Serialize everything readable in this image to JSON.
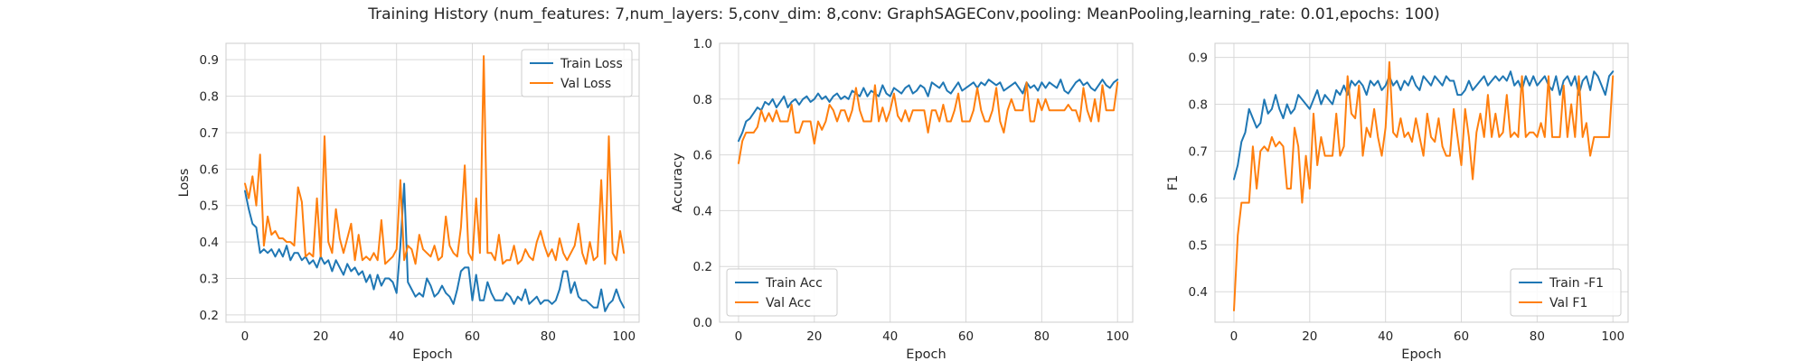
{
  "figure": {
    "title": "Training History (num_features: 7,num_layers: 5,conv_dim: 8,conv: GraphSAGEConv,pooling: MeanPooling,learning_rate: 0.01,epochs: 100)"
  },
  "colors": {
    "train": "#1f77b4",
    "val": "#ff7f0e"
  },
  "chart_data": [
    {
      "type": "line",
      "xlabel": "Epoch",
      "ylabel": "Loss",
      "xlim": [
        -5,
        104
      ],
      "ylim": [
        0.18,
        0.945
      ],
      "xticks": [
        0,
        20,
        40,
        60,
        80,
        100
      ],
      "yticks": [
        0.2,
        0.3,
        0.4,
        0.5,
        0.6,
        0.7,
        0.8,
        0.9
      ],
      "ytick_labels": [
        "0.2",
        "0.3",
        "0.4",
        "0.5",
        "0.6",
        "0.7",
        "0.8",
        "0.9"
      ],
      "grid": true,
      "legend": "top-right",
      "series": [
        {
          "name": "Train Loss",
          "values": [
            0.54,
            0.49,
            0.45,
            0.44,
            0.37,
            0.38,
            0.37,
            0.38,
            0.36,
            0.38,
            0.36,
            0.39,
            0.35,
            0.37,
            0.37,
            0.35,
            0.36,
            0.34,
            0.35,
            0.33,
            0.36,
            0.34,
            0.35,
            0.32,
            0.35,
            0.33,
            0.31,
            0.34,
            0.32,
            0.33,
            0.31,
            0.32,
            0.29,
            0.31,
            0.27,
            0.31,
            0.28,
            0.3,
            0.3,
            0.29,
            0.26,
            0.39,
            0.56,
            0.29,
            0.27,
            0.25,
            0.26,
            0.25,
            0.3,
            0.28,
            0.25,
            0.26,
            0.28,
            0.26,
            0.25,
            0.23,
            0.27,
            0.32,
            0.33,
            0.33,
            0.24,
            0.31,
            0.24,
            0.24,
            0.29,
            0.26,
            0.24,
            0.24,
            0.24,
            0.26,
            0.25,
            0.23,
            0.25,
            0.24,
            0.27,
            0.23,
            0.24,
            0.25,
            0.23,
            0.24,
            0.24,
            0.23,
            0.24,
            0.27,
            0.32,
            0.32,
            0.26,
            0.29,
            0.25,
            0.24,
            0.24,
            0.23,
            0.22,
            0.22,
            0.27,
            0.21,
            0.23,
            0.24,
            0.27,
            0.24,
            0.22
          ]
        },
        {
          "name": "Val Loss",
          "values": [
            0.56,
            0.52,
            0.58,
            0.5,
            0.64,
            0.39,
            0.47,
            0.42,
            0.43,
            0.41,
            0.41,
            0.4,
            0.4,
            0.39,
            0.55,
            0.51,
            0.36,
            0.37,
            0.36,
            0.52,
            0.36,
            0.69,
            0.4,
            0.37,
            0.49,
            0.41,
            0.37,
            0.41,
            0.45,
            0.35,
            0.42,
            0.35,
            0.36,
            0.35,
            0.37,
            0.35,
            0.46,
            0.34,
            0.35,
            0.36,
            0.38,
            0.57,
            0.35,
            0.39,
            0.38,
            0.34,
            0.42,
            0.38,
            0.37,
            0.36,
            0.39,
            0.35,
            0.36,
            0.47,
            0.39,
            0.37,
            0.36,
            0.44,
            0.61,
            0.37,
            0.35,
            0.52,
            0.37,
            0.91,
            0.37,
            0.37,
            0.35,
            0.42,
            0.34,
            0.35,
            0.35,
            0.39,
            0.34,
            0.35,
            0.38,
            0.36,
            0.35,
            0.4,
            0.43,
            0.39,
            0.36,
            0.38,
            0.35,
            0.41,
            0.37,
            0.35,
            0.37,
            0.39,
            0.45,
            0.37,
            0.34,
            0.4,
            0.35,
            0.36,
            0.57,
            0.34,
            0.69,
            0.37,
            0.35,
            0.43,
            0.37
          ]
        }
      ]
    },
    {
      "type": "line",
      "xlabel": "Epoch",
      "ylabel": "Accuracy",
      "xlim": [
        -5,
        104
      ],
      "ylim": [
        0.0,
        1.0
      ],
      "xticks": [
        0,
        20,
        40,
        60,
        80,
        100
      ],
      "yticks": [
        0.0,
        0.2,
        0.4,
        0.6,
        0.8,
        1.0
      ],
      "ytick_labels": [
        "0.0",
        "0.2",
        "0.4",
        "0.6",
        "0.8",
        "1.0"
      ],
      "grid": true,
      "legend": "bottom-left",
      "series": [
        {
          "name": "Train Acc",
          "values": [
            0.65,
            0.68,
            0.72,
            0.73,
            0.75,
            0.77,
            0.76,
            0.79,
            0.78,
            0.8,
            0.77,
            0.79,
            0.81,
            0.77,
            0.79,
            0.8,
            0.78,
            0.8,
            0.81,
            0.79,
            0.8,
            0.82,
            0.8,
            0.81,
            0.79,
            0.81,
            0.82,
            0.8,
            0.81,
            0.8,
            0.83,
            0.82,
            0.81,
            0.84,
            0.81,
            0.83,
            0.82,
            0.81,
            0.85,
            0.82,
            0.81,
            0.84,
            0.83,
            0.82,
            0.84,
            0.85,
            0.82,
            0.83,
            0.85,
            0.84,
            0.81,
            0.86,
            0.85,
            0.84,
            0.86,
            0.83,
            0.82,
            0.84,
            0.86,
            0.83,
            0.84,
            0.85,
            0.86,
            0.84,
            0.86,
            0.85,
            0.87,
            0.86,
            0.85,
            0.86,
            0.83,
            0.84,
            0.85,
            0.86,
            0.84,
            0.82,
            0.86,
            0.84,
            0.85,
            0.83,
            0.86,
            0.84,
            0.86,
            0.85,
            0.84,
            0.87,
            0.83,
            0.82,
            0.84,
            0.86,
            0.87,
            0.85,
            0.86,
            0.84,
            0.83,
            0.85,
            0.87,
            0.85,
            0.84,
            0.86,
            0.87
          ]
        },
        {
          "name": "Val Acc",
          "values": [
            0.57,
            0.65,
            0.68,
            0.68,
            0.68,
            0.7,
            0.76,
            0.72,
            0.75,
            0.72,
            0.76,
            0.72,
            0.72,
            0.72,
            0.78,
            0.68,
            0.68,
            0.72,
            0.72,
            0.72,
            0.64,
            0.72,
            0.69,
            0.72,
            0.78,
            0.76,
            0.72,
            0.76,
            0.76,
            0.72,
            0.76,
            0.84,
            0.76,
            0.72,
            0.72,
            0.72,
            0.85,
            0.72,
            0.77,
            0.72,
            0.76,
            0.82,
            0.74,
            0.72,
            0.76,
            0.72,
            0.76,
            0.76,
            0.76,
            0.76,
            0.68,
            0.76,
            0.76,
            0.72,
            0.78,
            0.72,
            0.72,
            0.76,
            0.82,
            0.72,
            0.72,
            0.72,
            0.76,
            0.84,
            0.76,
            0.72,
            0.72,
            0.76,
            0.84,
            0.72,
            0.68,
            0.76,
            0.8,
            0.76,
            0.76,
            0.76,
            0.86,
            0.72,
            0.72,
            0.8,
            0.76,
            0.8,
            0.76,
            0.76,
            0.76,
            0.76,
            0.76,
            0.78,
            0.76,
            0.76,
            0.72,
            0.84,
            0.76,
            0.72,
            0.8,
            0.72,
            0.85,
            0.76,
            0.76,
            0.76,
            0.86
          ]
        }
      ]
    },
    {
      "type": "line",
      "xlabel": "Epoch",
      "ylabel": "F1",
      "xlim": [
        -5,
        104
      ],
      "ylim": [
        0.335,
        0.93
      ],
      "xticks": [
        0,
        20,
        40,
        60,
        80,
        100
      ],
      "yticks": [
        0.4,
        0.5,
        0.6,
        0.7,
        0.8,
        0.9
      ],
      "ytick_labels": [
        "0.4",
        "0.5",
        "0.6",
        "0.7",
        "0.8",
        "0.9"
      ],
      "grid": true,
      "legend": "bottom-right",
      "series": [
        {
          "name": "Train -F1",
          "values": [
            0.64,
            0.67,
            0.72,
            0.74,
            0.79,
            0.77,
            0.75,
            0.76,
            0.81,
            0.78,
            0.79,
            0.82,
            0.79,
            0.77,
            0.8,
            0.78,
            0.79,
            0.82,
            0.81,
            0.8,
            0.79,
            0.81,
            0.83,
            0.8,
            0.82,
            0.81,
            0.8,
            0.83,
            0.82,
            0.84,
            0.82,
            0.85,
            0.84,
            0.85,
            0.84,
            0.82,
            0.85,
            0.84,
            0.85,
            0.83,
            0.84,
            0.86,
            0.84,
            0.85,
            0.83,
            0.85,
            0.84,
            0.86,
            0.84,
            0.83,
            0.86,
            0.85,
            0.84,
            0.86,
            0.85,
            0.84,
            0.86,
            0.85,
            0.85,
            0.82,
            0.82,
            0.83,
            0.85,
            0.83,
            0.84,
            0.85,
            0.86,
            0.84,
            0.85,
            0.86,
            0.85,
            0.86,
            0.85,
            0.87,
            0.84,
            0.85,
            0.83,
            0.86,
            0.84,
            0.86,
            0.84,
            0.85,
            0.86,
            0.84,
            0.83,
            0.86,
            0.82,
            0.85,
            0.86,
            0.84,
            0.86,
            0.82,
            0.85,
            0.86,
            0.83,
            0.87,
            0.86,
            0.84,
            0.82,
            0.86,
            0.87
          ]
        },
        {
          "name": "Val F1",
          "values": [
            0.36,
            0.52,
            0.59,
            0.59,
            0.59,
            0.71,
            0.62,
            0.7,
            0.71,
            0.7,
            0.73,
            0.71,
            0.72,
            0.71,
            0.62,
            0.62,
            0.75,
            0.71,
            0.59,
            0.69,
            0.62,
            0.78,
            0.67,
            0.73,
            0.69,
            0.69,
            0.69,
            0.78,
            0.69,
            0.71,
            0.86,
            0.78,
            0.77,
            0.84,
            0.69,
            0.75,
            0.73,
            0.79,
            0.73,
            0.69,
            0.75,
            0.89,
            0.74,
            0.73,
            0.77,
            0.73,
            0.74,
            0.72,
            0.77,
            0.73,
            0.69,
            0.78,
            0.73,
            0.72,
            0.77,
            0.71,
            0.69,
            0.69,
            0.79,
            0.73,
            0.67,
            0.79,
            0.73,
            0.64,
            0.74,
            0.78,
            0.73,
            0.82,
            0.73,
            0.78,
            0.73,
            0.74,
            0.82,
            0.73,
            0.74,
            0.73,
            0.86,
            0.73,
            0.74,
            0.74,
            0.73,
            0.76,
            0.73,
            0.86,
            0.73,
            0.73,
            0.73,
            0.84,
            0.73,
            0.8,
            0.73,
            0.86,
            0.73,
            0.76,
            0.69,
            0.73,
            0.73,
            0.73,
            0.73,
            0.73,
            0.86
          ]
        }
      ]
    }
  ]
}
